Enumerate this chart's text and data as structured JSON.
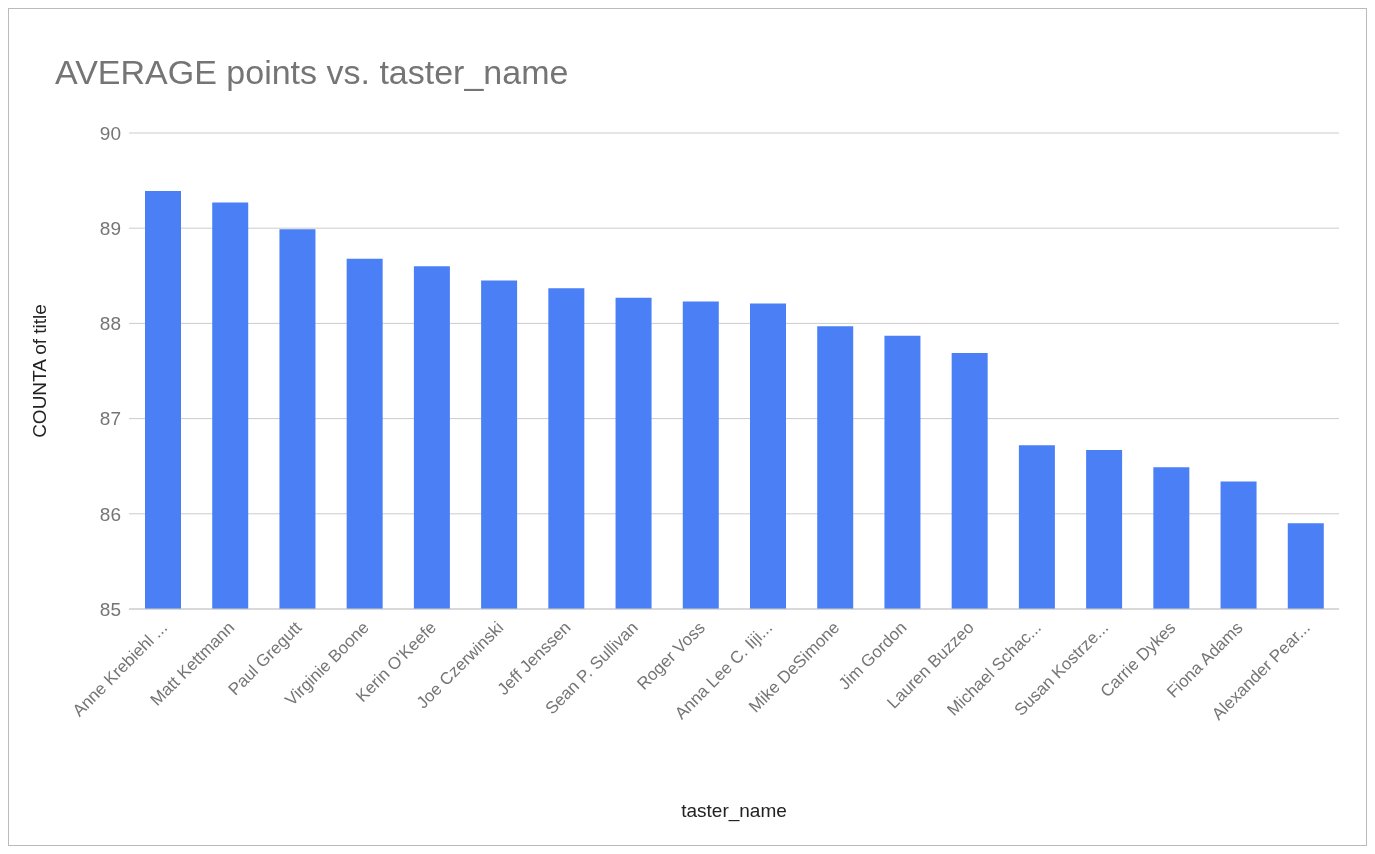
{
  "chart_data": {
    "type": "bar",
    "title": "AVERAGE points vs. taster_name",
    "xlabel": "taster_name",
    "ylabel": "COUNTA of title",
    "categories": [
      "Anne Krebiehl ...",
      "Matt Kettmann",
      "Paul Gregutt",
      "Virginie Boone",
      "Kerin O'Keefe",
      "Joe Czerwinski",
      "Jeff Jenssen",
      "Sean P. Sullivan",
      "Roger Voss",
      "Anna Lee C. Iiji...",
      "Mike DeSimone",
      "Jim Gordon",
      "Lauren Buzzeo",
      "Michael Schac...",
      "Susan Kostrze...",
      "Carrie Dykes",
      "Fiona Adams",
      "Alexander Pear..."
    ],
    "values": [
      89.39,
      89.27,
      88.99,
      88.68,
      88.6,
      88.45,
      88.37,
      88.27,
      88.23,
      88.21,
      87.97,
      87.87,
      87.69,
      86.72,
      86.67,
      86.49,
      86.34,
      85.9
    ],
    "color": "#4a7ff6",
    "ylim": [
      85,
      90
    ],
    "yticks": [
      85,
      86,
      87,
      88,
      89,
      90
    ],
    "grid": "y"
  }
}
